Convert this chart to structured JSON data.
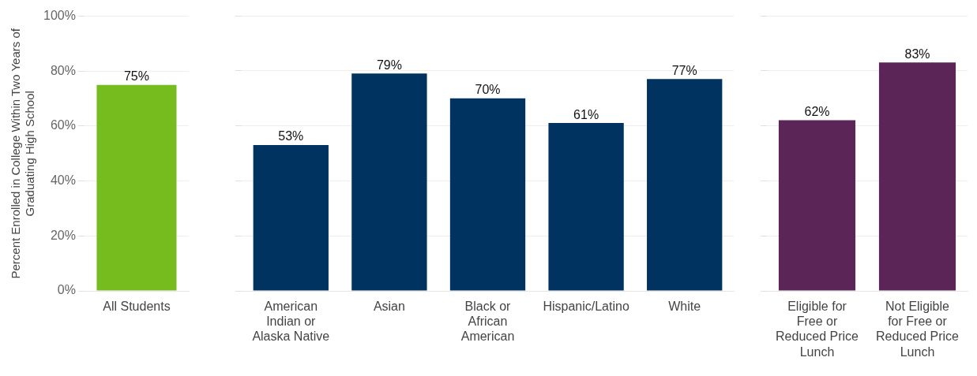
{
  "chart_data": [
    {
      "type": "bar",
      "ylabel": "Percent Enrolled in College Within Two Years of Graduating High School",
      "categories": [
        "All Students"
      ],
      "series": [
        {
          "color": "#77bc1f",
          "values": [
            75
          ],
          "value_labels": [
            "75%"
          ]
        }
      ],
      "ylim": [
        0,
        100
      ],
      "yticks": [
        {
          "value": 0,
          "label": "0%"
        },
        {
          "value": 20,
          "label": "20%"
        },
        {
          "value": 40,
          "label": "40%"
        },
        {
          "value": 60,
          "label": "60%"
        },
        {
          "value": 80,
          "label": "80%"
        },
        {
          "value": 100,
          "label": "100%"
        }
      ],
      "grid": "y",
      "legend": false
    },
    {
      "type": "bar",
      "categories": [
        "American Indian or Alaska Native",
        "Asian",
        "Black or African American",
        "Hispanic/Latino",
        "White"
      ],
      "series": [
        {
          "color": "#003360",
          "values": [
            53,
            79,
            70,
            61,
            77
          ],
          "value_labels": [
            "53%",
            "79%",
            "70%",
            "61%",
            "77%"
          ]
        }
      ],
      "ylim": [
        0,
        100
      ],
      "yticks": [
        {
          "value": 0,
          "label": null
        },
        {
          "value": 20,
          "label": null
        },
        {
          "value": 40,
          "label": null
        },
        {
          "value": 60,
          "label": null
        },
        {
          "value": 80,
          "label": null
        },
        {
          "value": 100,
          "label": null
        }
      ],
      "grid": "y",
      "legend": false,
      "tick_labels": "x"
    },
    {
      "type": "bar",
      "categories": [
        "Eligible for Free or Reduced Price Lunch",
        "Not Eligible for Free or Reduced Price Lunch"
      ],
      "series": [
        {
          "color": "#5c2558",
          "values": [
            62,
            83
          ],
          "value_labels": [
            "62%",
            "83%"
          ]
        }
      ],
      "ylim": [
        0,
        100
      ],
      "yticks": [
        {
          "value": 0,
          "label": null
        },
        {
          "value": 20,
          "label": null
        },
        {
          "value": 40,
          "label": null
        },
        {
          "value": 60,
          "label": null
        },
        {
          "value": 80,
          "label": null
        },
        {
          "value": 100,
          "label": null
        }
      ],
      "grid": "y",
      "legend": false,
      "tick_labels": "x"
    }
  ]
}
